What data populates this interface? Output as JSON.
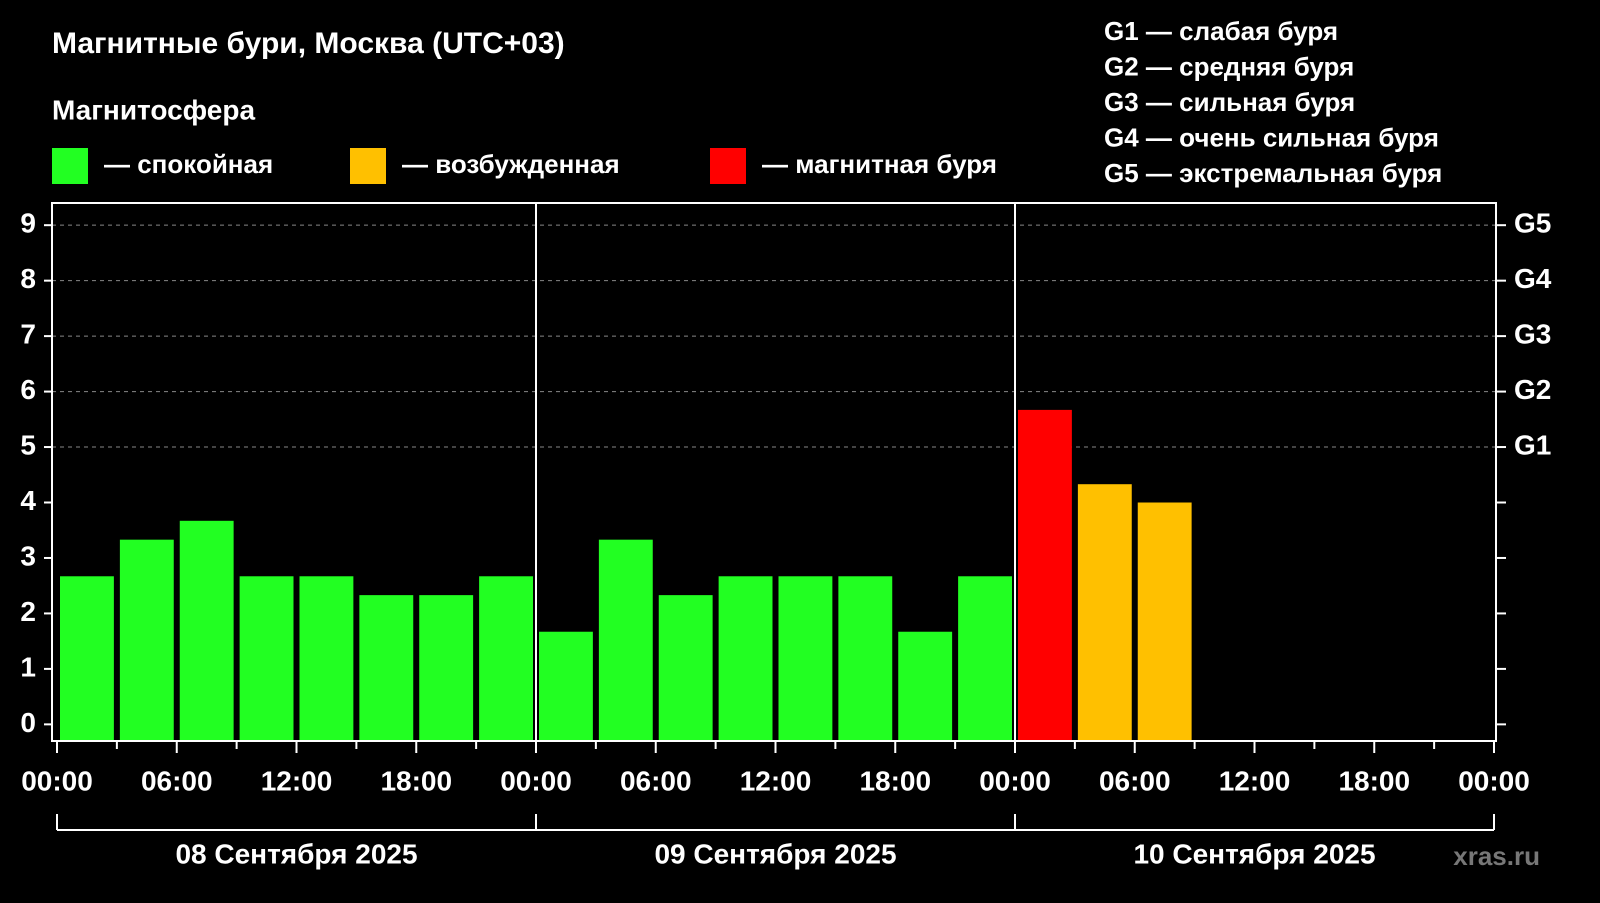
{
  "chart_data": {
    "type": "bar",
    "title": "Магнитные бури, Москва (UTC+03)",
    "subtitle": "Магнитосфера",
    "legend": [
      {
        "label": "— спокойная",
        "color": "#22ff22"
      },
      {
        "label": "— возбужденная",
        "color": "#ffc000"
      },
      {
        "label": "— магнитная буря",
        "color": "#ff0000"
      }
    ],
    "notes": [
      "G1 — слабая буря",
      "G2 — средняя буря",
      "G3 — сильная буря",
      "G4 — очень сильная буря",
      "G5 — экстремальная буря"
    ],
    "x": [
      0,
      3,
      6,
      9,
      12,
      15,
      18,
      21,
      24,
      27,
      30,
      33,
      36,
      39,
      42,
      45,
      48,
      51,
      54
    ],
    "bar_width": 3,
    "values": [
      2.67,
      3.33,
      3.67,
      2.67,
      2.67,
      2.33,
      2.33,
      2.67,
      1.67,
      3.33,
      2.33,
      2.67,
      2.67,
      2.67,
      1.67,
      2.67,
      5.67,
      4.33,
      4.0
    ],
    "colors": [
      "#22ff22",
      "#22ff22",
      "#22ff22",
      "#22ff22",
      "#22ff22",
      "#22ff22",
      "#22ff22",
      "#22ff22",
      "#22ff22",
      "#22ff22",
      "#22ff22",
      "#22ff22",
      "#22ff22",
      "#22ff22",
      "#22ff22",
      "#22ff22",
      "#ff0000",
      "#ffc000",
      "#ffc000"
    ],
    "xlim": [
      0,
      72
    ],
    "xticks": [
      {
        "value": 0,
        "label": "00:00"
      },
      {
        "value": 6,
        "label": "06:00"
      },
      {
        "value": 12,
        "label": "12:00"
      },
      {
        "value": 18,
        "label": "18:00"
      },
      {
        "value": 24,
        "label": "00:00"
      },
      {
        "value": 30,
        "label": "06:00"
      },
      {
        "value": 36,
        "label": "12:00"
      },
      {
        "value": 42,
        "label": "18:00"
      },
      {
        "value": 48,
        "label": "00:00"
      },
      {
        "value": 54,
        "label": "06:00"
      },
      {
        "value": 60,
        "label": "12:00"
      },
      {
        "value": 66,
        "label": "18:00"
      },
      {
        "value": 72,
        "label": "00:00"
      }
    ],
    "xminorticks": [
      3,
      9,
      15,
      21,
      27,
      33,
      39,
      45,
      51,
      57,
      63,
      69
    ],
    "ylim": [
      -0.3,
      9.4
    ],
    "yticks": [
      0,
      1,
      2,
      3,
      4,
      5,
      6,
      7,
      8,
      9
    ],
    "y2lim": [
      -0.3,
      9.4
    ],
    "y2ticks": [
      {
        "value": 5,
        "label": "G1"
      },
      {
        "value": 6,
        "label": "G2"
      },
      {
        "value": 7,
        "label": "G3"
      },
      {
        "value": 8,
        "label": "G4"
      },
      {
        "value": 9,
        "label": "G5"
      }
    ],
    "periods": [
      {
        "start": 0,
        "end": 24,
        "label": "08 Сентября 2025"
      },
      {
        "start": 24,
        "end": 48,
        "label": "09 Сентября 2025"
      },
      {
        "start": 48,
        "end": 72,
        "label": "10 Сентября 2025"
      }
    ],
    "watermark": "xras.ru"
  }
}
